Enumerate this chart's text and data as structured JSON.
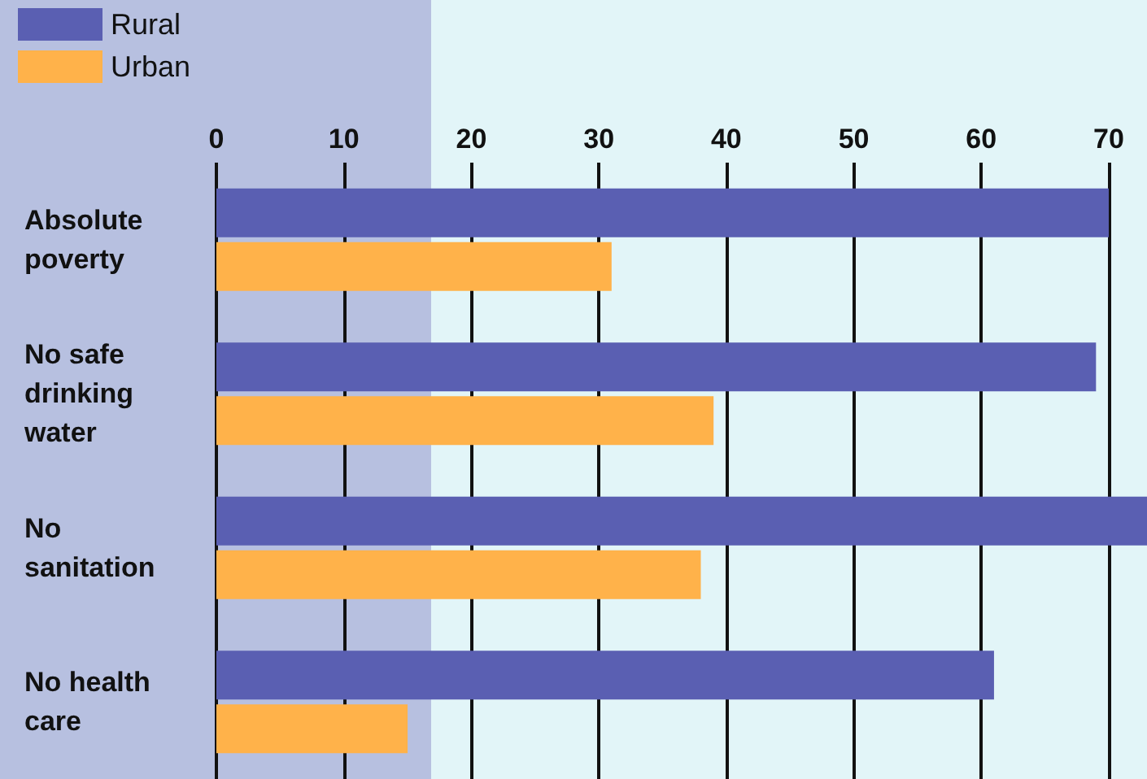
{
  "chart_data": {
    "type": "bar",
    "orientation": "horizontal",
    "categories": [
      "Absolute poverty",
      "No safe drinking water",
      "No sanitation",
      "No health care"
    ],
    "series": [
      {
        "name": "Rural",
        "color": "#5a5fb2",
        "values": [
          70,
          69,
          73,
          61
        ]
      },
      {
        "name": "Urban",
        "color": "#ffb24a",
        "values": [
          31,
          39,
          38,
          15
        ]
      }
    ],
    "xlim": [
      0,
      73
    ],
    "xticks": [
      0,
      10,
      20,
      30,
      40,
      50,
      60,
      70
    ],
    "grid": "x",
    "legend": "top left"
  }
}
